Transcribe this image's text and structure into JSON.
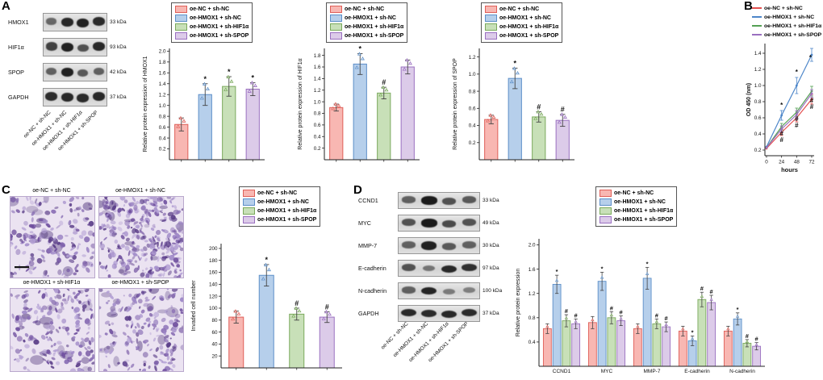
{
  "panels": {
    "a": "A",
    "b": "B",
    "c": "C",
    "d": "D"
  },
  "groups": [
    {
      "label": "oe-NC + sh-NC",
      "fill": "#f8b7b2",
      "stroke": "#df5f58",
      "line": "#e34f4f"
    },
    {
      "label": "oe-HMOX1 + sh-NC",
      "fill": "#b6cfeb",
      "stroke": "#5d8fc8",
      "line": "#4d86c9"
    },
    {
      "label": "oe-HMOX1 + sh-HIF1α",
      "fill": "#c8e0b8",
      "stroke": "#7aa95c",
      "line": "#54a054"
    },
    {
      "label": "oe-HMOX1 + sh-SPOP",
      "fill": "#dccbe9",
      "stroke": "#9a70c0",
      "line": "#9a6fc0"
    }
  ],
  "panelA": {
    "blot_rows": [
      {
        "protein": "HMOX1",
        "kda": "33 kDa",
        "bands": [
          0.45,
          0.9,
          0.95,
          0.88
        ]
      },
      {
        "protein": "HIF1α",
        "kda": "93 kDa",
        "bands": [
          0.72,
          0.95,
          0.6,
          0.9
        ]
      },
      {
        "protein": "SPOP",
        "kda": "42 kDa",
        "bands": [
          0.5,
          0.95,
          0.55,
          0.5
        ]
      },
      {
        "protein": "GAPDH",
        "kda": "37 kDa",
        "bands": [
          0.88,
          0.9,
          0.88,
          0.9
        ]
      }
    ]
  },
  "panelD": {
    "blot_rows": [
      {
        "protein": "CCND1",
        "kda": "33 kDa",
        "bands": [
          0.5,
          1.0,
          0.6,
          0.55
        ]
      },
      {
        "protein": "MYC",
        "kda": "49 kDa",
        "bands": [
          0.6,
          1.0,
          0.65,
          0.6
        ]
      },
      {
        "protein": "MMP-7",
        "kda": "30 kDa",
        "bands": [
          0.5,
          0.95,
          0.55,
          0.5
        ]
      },
      {
        "protein": "E-cadherin",
        "kda": "97 kDa",
        "bands": [
          0.6,
          0.35,
          0.9,
          0.85
        ]
      },
      {
        "protein": "N-cadherin",
        "kda": "100 kDa",
        "bands": [
          0.5,
          0.92,
          0.3,
          0.28
        ]
      },
      {
        "protein": "GAPDH",
        "kda": "37 kDa",
        "bands": [
          0.9,
          0.88,
          0.9,
          0.88
        ]
      }
    ]
  },
  "chart_data": [
    {
      "id": "a1",
      "type": "bar",
      "ylabel": "Relative protein expression of HMOX1",
      "categories": [
        "oe-NC + sh-NC",
        "oe-HMOX1 + sh-NC",
        "oe-HMOX1 + sh-HIF1α",
        "oe-HMOX1 + sh-SPOP"
      ],
      "values": [
        0.65,
        1.2,
        1.35,
        1.3
      ],
      "errors": [
        0.12,
        0.2,
        0.18,
        0.12
      ],
      "marks": [
        "",
        "*",
        "*",
        "*"
      ],
      "ylim": [
        0,
        2.05
      ],
      "ytick_min": 0.2,
      "ytick_max": 2.0,
      "ytick_step": 0.2,
      "decimals": 1
    },
    {
      "id": "a2",
      "type": "bar",
      "ylabel": "Relative protein expression of HIF1α",
      "categories": [
        "oe-NC + sh-NC",
        "oe-HMOX1 + sh-NC",
        "oe-HMOX1 + sh-HIF1α",
        "oe-HMOX1 + sh-SPOP"
      ],
      "values": [
        0.9,
        1.65,
        1.15,
        1.6
      ],
      "errors": [
        0.06,
        0.18,
        0.1,
        0.12
      ],
      "marks": [
        "",
        "*",
        "#",
        ""
      ],
      "ylim": [
        0,
        1.92
      ],
      "ytick_min": 0.2,
      "ytick_max": 1.8,
      "ytick_step": 0.2,
      "decimals": 1
    },
    {
      "id": "a3",
      "type": "bar",
      "ylabel": "Relative protein expression of SPOP",
      "categories": [
        "oe-NC + sh-NC",
        "oe-HMOX1 + sh-NC",
        "oe-HMOX1 + sh-HIF1α",
        "oe-HMOX1 + sh-SPOP"
      ],
      "values": [
        0.47,
        0.95,
        0.5,
        0.46
      ],
      "errors": [
        0.05,
        0.12,
        0.06,
        0.07
      ],
      "marks": [
        "",
        "*",
        "#",
        "#"
      ],
      "ylim": [
        0,
        1.3
      ],
      "ytick_min": 0.2,
      "ytick_max": 1.2,
      "ytick_step": 0.2,
      "decimals": 1
    },
    {
      "id": "b",
      "type": "line",
      "ylabel": "OD 450 (nm)",
      "xlabel": "hours",
      "x": [
        0,
        24,
        48,
        72
      ],
      "series": [
        {
          "name": "oe-NC + sh-NC",
          "values": [
            0.22,
            0.42,
            0.6,
            0.83
          ],
          "errors": [
            0.02,
            0.04,
            0.05,
            0.06
          ]
        },
        {
          "name": "oe-HMOX1 + sh-NC",
          "values": [
            0.24,
            0.63,
            1.0,
            1.38
          ],
          "errors": [
            0.02,
            0.06,
            0.1,
            0.08
          ]
        },
        {
          "name": "oe-HMOX1 + sh-HIF1α",
          "values": [
            0.23,
            0.49,
            0.67,
            0.93
          ],
          "errors": [
            0.02,
            0.04,
            0.05,
            0.06
          ]
        },
        {
          "name": "oe-HMOX1 + sh-SPOP",
          "values": [
            0.23,
            0.46,
            0.64,
            0.9
          ],
          "errors": [
            0.02,
            0.04,
            0.05,
            0.05
          ]
        }
      ],
      "annotations": [
        {
          "x": 24,
          "y": 0.73,
          "t": "*"
        },
        {
          "x": 48,
          "y": 1.14,
          "t": "*"
        },
        {
          "x": 70,
          "y": 1.32,
          "t": "*"
        },
        {
          "x": 24,
          "y": 0.38,
          "t": "#"
        },
        {
          "x": 24,
          "y": 0.3,
          "t": "#"
        },
        {
          "x": 48,
          "y": 0.56,
          "t": "#"
        },
        {
          "x": 48,
          "y": 0.48,
          "t": "#"
        },
        {
          "x": 72,
          "y": 0.79,
          "t": "#"
        },
        {
          "x": 72,
          "y": 0.71,
          "t": "#"
        }
      ],
      "ylim": [
        0.13,
        1.52
      ],
      "ytick_min": 0.2,
      "ytick_max": 1.4,
      "ytick_step": 0.2,
      "decimals": 1
    },
    {
      "id": "c",
      "type": "bar",
      "ylabel": "Invaded cell number",
      "categories": [
        "oe-NC + sh-NC",
        "oe-HMOX1 + sh-NC",
        "oe-HMOX1 + sh-HIF1α",
        "oe-HMOX1 + sh-SPOP"
      ],
      "values": [
        85,
        155,
        90,
        85
      ],
      "errors": [
        10,
        18,
        10,
        9
      ],
      "marks": [
        "",
        "*",
        "#",
        "#"
      ],
      "ylim": [
        0,
        208
      ],
      "ytick_min": 20,
      "ytick_max": 200,
      "ytick_step": 20,
      "decimals": 0
    },
    {
      "id": "d",
      "type": "groupbar",
      "ylabel": "Relative protein expression",
      "categories": [
        "CCND1",
        "MYC",
        "MMP-7",
        "E-cadherin",
        "N-cadherin"
      ],
      "series": [
        {
          "name": "oe-NC + sh-NC",
          "values": [
            0.62,
            0.72,
            0.62,
            0.58,
            0.58
          ],
          "errors": [
            0.08,
            0.1,
            0.08,
            0.08,
            0.08
          ]
        },
        {
          "name": "oe-HMOX1 + sh-NC",
          "values": [
            1.35,
            1.4,
            1.45,
            0.42,
            0.78
          ],
          "errors": [
            0.15,
            0.15,
            0.18,
            0.08,
            0.1
          ]
        },
        {
          "name": "oe-HMOX1 + sh-HIF1α",
          "values": [
            0.75,
            0.8,
            0.7,
            1.1,
            0.38
          ],
          "errors": [
            0.1,
            0.1,
            0.08,
            0.12,
            0.06
          ]
        },
        {
          "name": "oe-HMOX1 + sh-SPOP",
          "values": [
            0.7,
            0.75,
            0.65,
            1.05,
            0.33
          ],
          "errors": [
            0.08,
            0.08,
            0.08,
            0.12,
            0.06
          ]
        }
      ],
      "marks": [
        [
          "",
          "*",
          "#",
          "#"
        ],
        [
          "",
          "*",
          "#",
          "#"
        ],
        [
          "",
          "*",
          "#",
          "#"
        ],
        [
          "",
          "*",
          "#",
          "#"
        ],
        [
          "",
          "*",
          "#",
          "#"
        ]
      ],
      "ylim": [
        0,
        2.1
      ],
      "ytick_min": 0.4,
      "ytick_max": 2.0,
      "ytick_step": 0.4,
      "decimals": 1
    }
  ]
}
